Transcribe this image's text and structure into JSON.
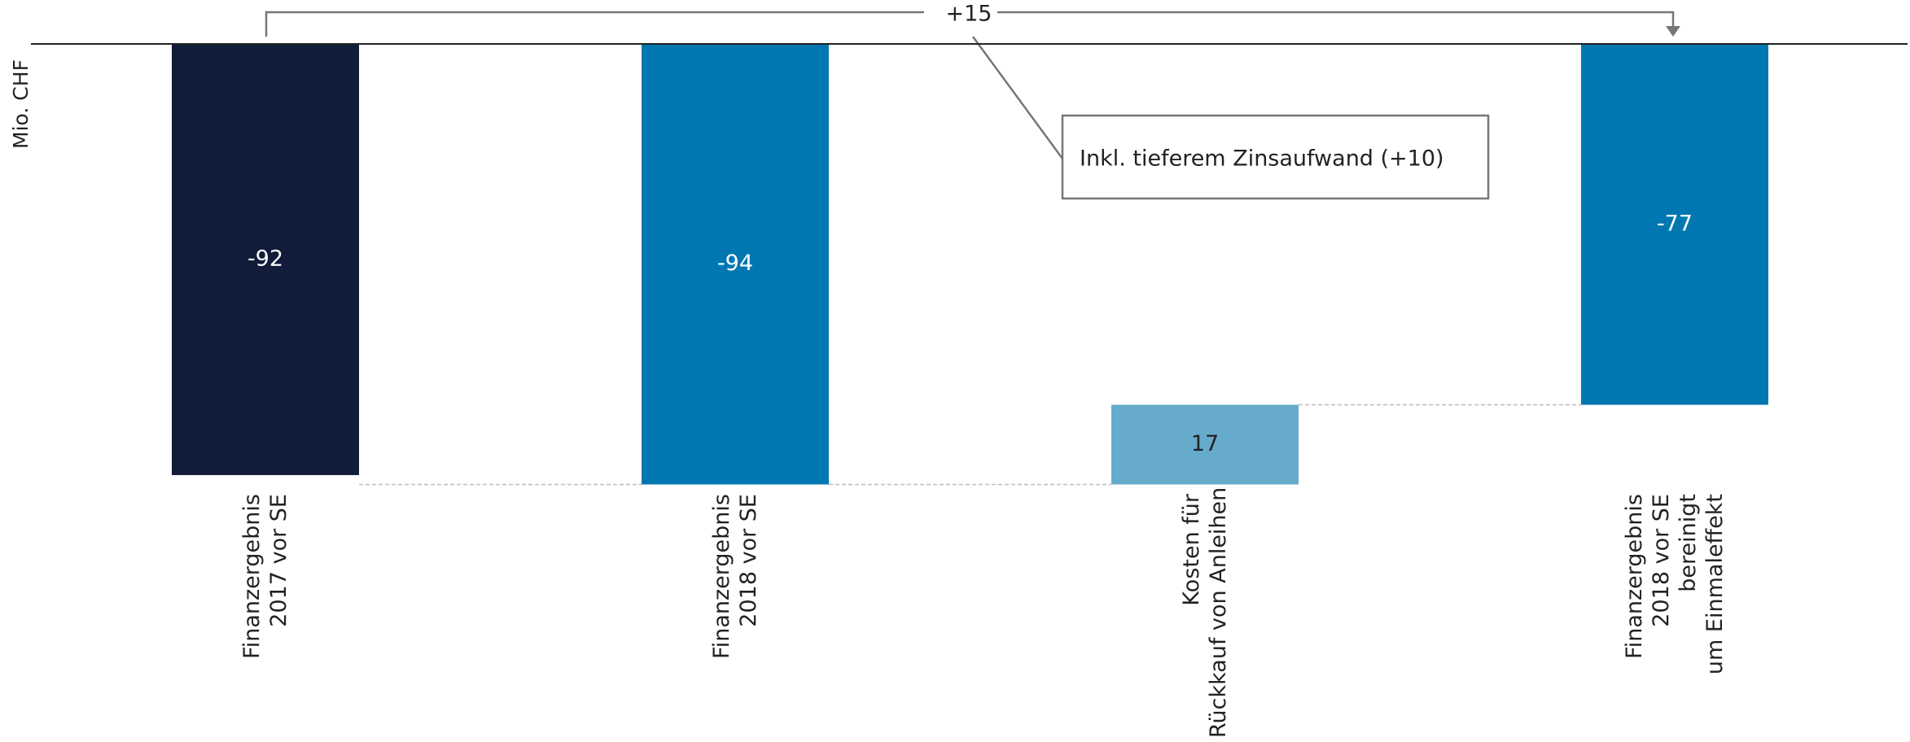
{
  "chart_data": {
    "type": "waterfall",
    "y_label": "Mio. CHF",
    "categories": [
      "Finanzergebnis\n2017 vor SE",
      "Finanzergebnis\n2018 vor SE",
      "Kosten für\nRückkauf von Anleihen",
      "Finanzergebnis\n2018 vor SE\nbereinigt\num Einmaleffekt"
    ],
    "values": [
      -92,
      -94,
      17,
      -77
    ],
    "measures": [
      "absolute",
      "absolute",
      "relative",
      "absolute"
    ],
    "colors": [
      "#111c3a",
      "#0077b0",
      "#66abcc",
      "#0077b0"
    ],
    "ylim": [
      -100,
      0
    ],
    "annotations": [
      "+15",
      "Inkl. tieferem Zinsaufwand (+10)"
    ]
  }
}
